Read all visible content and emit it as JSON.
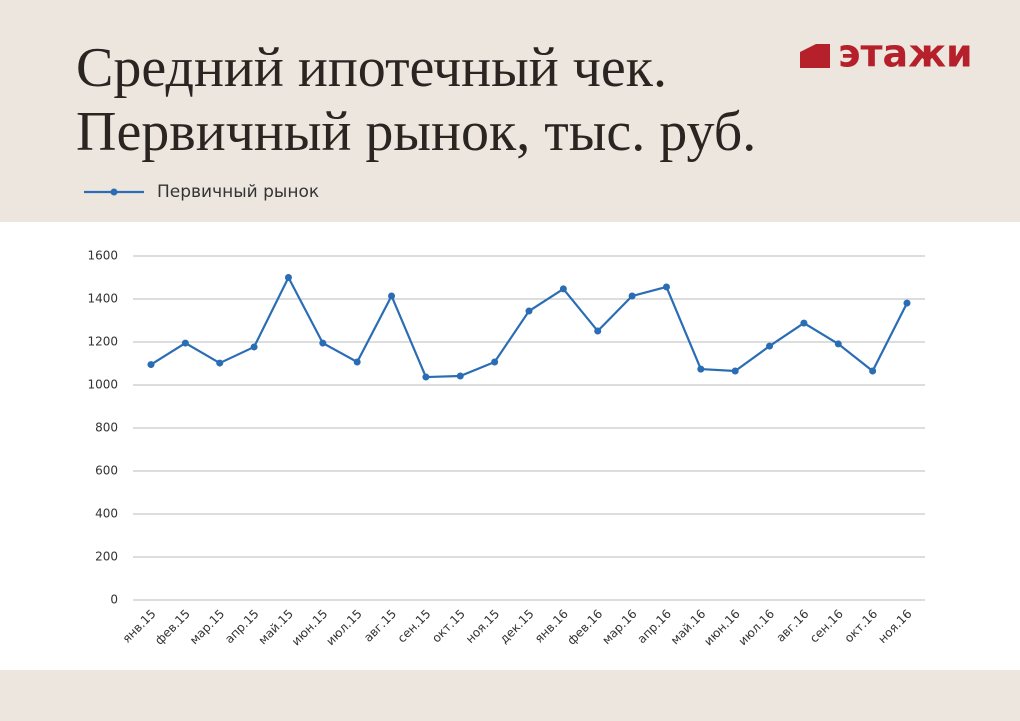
{
  "logo": "этажи",
  "chart_data": {
    "type": "line",
    "title": "Средний ипотечный чек.\nПервичный рынок, тыс. руб.",
    "categories": [
      "янв.15",
      "фев.15",
      "мар.15",
      "апр.15",
      "май.15",
      "июн.15",
      "июл.15",
      "авг.15",
      "сен.15",
      "окт.15",
      "ноя.15",
      "дек.15",
      "янв.16",
      "фев.16",
      "мар.16",
      "апр.16",
      "май.16",
      "июн.16",
      "июл.16",
      "авг.16",
      "сен.16",
      "окт.16",
      "ноя.16"
    ],
    "series": [
      {
        "name": "Первичный рынок",
        "color": "#2a6db5",
        "values": [
          1095,
          1195,
          1102,
          1177,
          1500,
          1195,
          1107,
          1414,
          1037,
          1042,
          1107,
          1344,
          1447,
          1251,
          1414,
          1456,
          1074,
          1065,
          1181,
          1288,
          1191,
          1065,
          1381
        ]
      }
    ],
    "ylim": [
      0,
      1600
    ],
    "yticks": [
      0,
      200,
      400,
      600,
      800,
      1000,
      1200,
      1400,
      1600
    ],
    "grid": true
  }
}
